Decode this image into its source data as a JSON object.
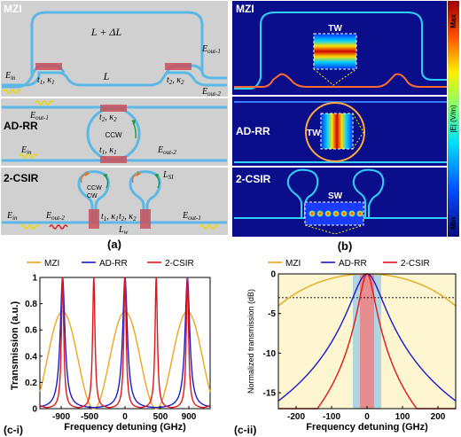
{
  "panel_a": {
    "label": "(a)",
    "mzi": {
      "name": "MZI",
      "upper_arm": "L + ΔL",
      "lower_arm": "L",
      "e_in": "E",
      "e_in_sub": "in",
      "e_out1": "E",
      "e_out1_sub": "out-1",
      "e_out2": "E",
      "e_out2_sub": "out-2",
      "c1": "t",
      "c1_sub": "1",
      "c1b": ", κ",
      "c1b_sub": "1",
      "c2": "t",
      "c2_sub": "2",
      "c2b": ", κ",
      "c2b_sub": "2"
    },
    "adrr": {
      "name": "AD-RR",
      "ccw": "CCW",
      "e_in": "E",
      "e_in_sub": "in",
      "e_out1": "E",
      "e_out1_sub": "out-1",
      "e_out2": "E",
      "e_out2_sub": "out-2",
      "c1": "t",
      "c1_sub": "1",
      "c1b": ", κ",
      "c1b_sub": "1",
      "c2": "t",
      "c2_sub": "2",
      "c2b": ", κ",
      "c2b_sub": "2"
    },
    "csir": {
      "name": "2-CSIR",
      "ccw": "CCW",
      "cw": "CW",
      "lsi": "L",
      "lsi_sub": "SI",
      "lw": "L",
      "lw_sub": "w",
      "e_in": "E",
      "e_in_sub": "in",
      "e_out1": "E",
      "e_out1_sub": "out-1",
      "e_out2": "E",
      "e_out2_sub": "out-2",
      "c1": "t",
      "c1_sub": "1",
      "c1b": ", κ",
      "c1b_sub": "1",
      "c2": "t",
      "c2_sub": "2",
      "c2b": ", κ",
      "c2b_sub": "2"
    }
  },
  "panel_b": {
    "label": "(b)",
    "mzi": "MZI",
    "adrr": "AD-RR",
    "csir": "2-CSIR",
    "tw1": "TW",
    "tw2": "TW",
    "sw": "SW",
    "cbar_max": "Max",
    "cbar_min": "Min",
    "cbar_label": "|E| (V/m)"
  },
  "legend": {
    "mzi": "MZI",
    "adrr": "AD-RR",
    "csir": "2-CSIR"
  },
  "colors": {
    "mzi": "#e8a81f",
    "adrr": "#1a1acc",
    "csir": "#e0161b",
    "waveguide": "#5bb8e6",
    "coupler": "#c9505a",
    "panel_bg": "#cccccc"
  },
  "chart_data": [
    {
      "type": "line",
      "panel_label": "(c-i)",
      "xlabel": "Frequency detuning (GHz)",
      "ylabel": "Transmission (a.u.)",
      "xlim": [
        -1200,
        1200
      ],
      "ylim": [
        0,
        1
      ],
      "xticks": [
        "-900",
        "-500",
        "0",
        "500",
        "900"
      ],
      "yticks": [
        "0",
        "0.2",
        "0.4",
        "0.6",
        "0.8",
        "1"
      ],
      "series": [
        {
          "name": "MZI",
          "fsr": 880,
          "peak": 0.74,
          "form": "cosine"
        },
        {
          "name": "AD-RR",
          "fsr": 880,
          "peak": 1.0,
          "fwhm": 80
        },
        {
          "name": "2-CSIR",
          "fsr": 440,
          "peak": 1.0,
          "fwhm": 40
        }
      ]
    },
    {
      "type": "line",
      "panel_label": "(c-ii)",
      "xlabel": "Frequency detuning (GHz)",
      "ylabel": "Normalized transmission (dB)",
      "xlim": [
        -250,
        250
      ],
      "ylim": [
        -17,
        0
      ],
      "xticks": [
        "-200",
        "-100",
        "0",
        "100",
        "200"
      ],
      "yticks": [
        "0",
        "-5",
        "-10",
        "-15"
      ],
      "reference_db": -3,
      "series": [
        {
          "name": "MZI",
          "fwhm": 440
        },
        {
          "name": "AD-RR",
          "fwhm": 80
        },
        {
          "name": "2-CSIR",
          "fwhm": 40
        }
      ]
    }
  ]
}
